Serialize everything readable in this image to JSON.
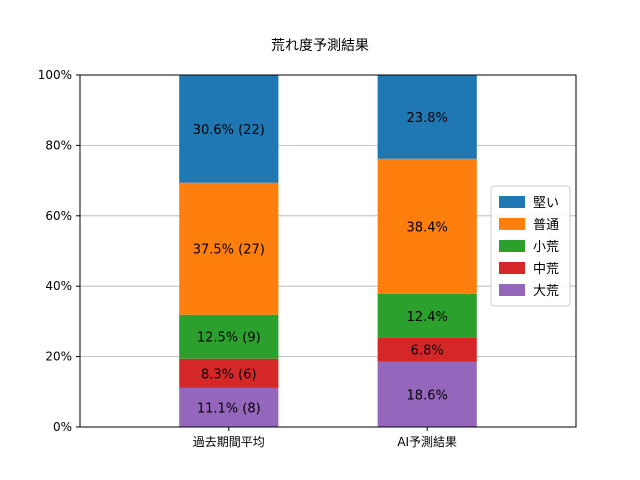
{
  "chart_data": {
    "type": "bar",
    "stacked": true,
    "title": "荒れ度予測結果",
    "xlabel": "",
    "ylabel": "",
    "ylim": [
      0,
      100
    ],
    "y_tick_labels": [
      "0%",
      "20%",
      "40%",
      "60%",
      "80%",
      "100%"
    ],
    "grid": "y",
    "legend_position": "right",
    "categories": [
      "過去期間平均",
      "AI予測結果"
    ],
    "series": [
      {
        "name": "大荒",
        "color": "#9467bd",
        "values": [
          11.1,
          18.6
        ],
        "labels": [
          "11.1% (8)",
          "18.6%"
        ]
      },
      {
        "name": "中荒",
        "color": "#d62728",
        "values": [
          8.3,
          6.8
        ],
        "labels": [
          "8.3% (6)",
          "6.8%"
        ]
      },
      {
        "name": "小荒",
        "color": "#2ca02c",
        "values": [
          12.5,
          12.4
        ],
        "labels": [
          "12.5% (9)",
          "12.4%"
        ]
      },
      {
        "name": "普通",
        "color": "#ff7f0e",
        "values": [
          37.5,
          38.4
        ],
        "labels": [
          "37.5% (27)",
          "38.4%"
        ]
      },
      {
        "name": "堅い",
        "color": "#1f77b4",
        "values": [
          30.6,
          23.8
        ],
        "labels": [
          "30.6% (22)",
          "23.8%"
        ]
      }
    ]
  }
}
